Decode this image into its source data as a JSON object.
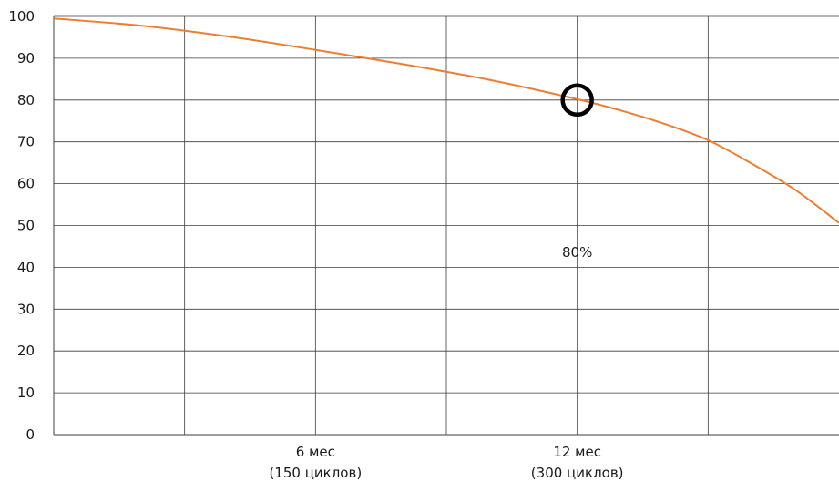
{
  "chart_data": {
    "type": "line",
    "title": "",
    "xlabel": "",
    "ylabel": "",
    "ylim": [
      0,
      100
    ],
    "xlim": [
      0,
      18
    ],
    "y_ticks": [
      0,
      10,
      20,
      30,
      40,
      50,
      60,
      70,
      80,
      90,
      100
    ],
    "x_ticks": [
      {
        "x": 6,
        "label_line1": "6 мес",
        "label_line2": "(150 циклов)"
      },
      {
        "x": 12,
        "label_line1": "12 мес",
        "label_line2": "(300 циклов)"
      }
    ],
    "x_gridlines": [
      3,
      6,
      9,
      12,
      15
    ],
    "grid": true,
    "series": [
      {
        "color": "#ee7d31",
        "points": [
          {
            "x": 0,
            "y": 99.5
          },
          {
            "x": 2,
            "y": 97.8
          },
          {
            "x": 4,
            "y": 95.2
          },
          {
            "x": 6,
            "y": 92.0
          },
          {
            "x": 8,
            "y": 88.6
          },
          {
            "x": 10,
            "y": 84.8
          },
          {
            "x": 12,
            "y": 80.2
          },
          {
            "x": 13,
            "y": 77.5
          },
          {
            "x": 14,
            "y": 74.3
          },
          {
            "x": 15,
            "y": 70.4
          },
          {
            "x": 16,
            "y": 64.8
          },
          {
            "x": 17,
            "y": 58.5
          },
          {
            "x": 18,
            "y": 50.6
          }
        ]
      }
    ],
    "marker": {
      "x": 12,
      "y": 80,
      "shape": "circle",
      "color": "#000000"
    },
    "annotation": {
      "text": "80%",
      "x": 12,
      "y": 42.5
    }
  }
}
